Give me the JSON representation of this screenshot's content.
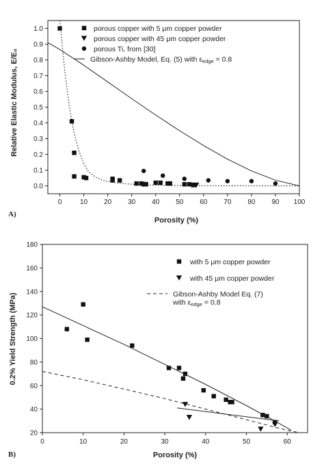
{
  "chart_data": [
    {
      "panel_label": "A)",
      "type": "scatter",
      "xlabel": "Porosity (%)",
      "ylabel": "Relative Elastic Modulus, E/E₀",
      "xlim": [
        -5,
        100
      ],
      "ylim": [
        -0.05,
        1.05
      ],
      "xticks": [
        0,
        10,
        20,
        30,
        40,
        50,
        60,
        70,
        80,
        90,
        100
      ],
      "yticks": [
        0.0,
        0.1,
        0.2,
        0.3,
        0.4,
        0.5,
        0.6,
        0.7,
        0.8,
        0.9,
        1.0
      ],
      "grid": false,
      "legend_position": "top-right",
      "series": [
        {
          "name": "porous copper with 5 μm copper powder",
          "marker": "square",
          "points": [
            [
              0,
              1.0
            ],
            [
              5,
              0.41
            ],
            [
              6,
              0.21
            ],
            [
              6,
              0.06
            ],
            [
              10,
              0.055
            ],
            [
              11,
              0.05
            ],
            [
              22,
              0.045
            ],
            [
              22,
              0.035
            ],
            [
              25,
              0.035
            ],
            [
              32,
              0.015
            ],
            [
              34,
              0.015
            ],
            [
              35,
              0.01
            ],
            [
              36,
              0.01
            ],
            [
              40,
              0.02
            ],
            [
              42,
              0.02
            ],
            [
              45,
              0.015
            ],
            [
              46,
              0.015
            ],
            [
              52,
              0.01
            ],
            [
              54,
              0.01
            ],
            [
              56,
              0.005
            ]
          ]
        },
        {
          "name": "porous copper with 45 μm copper powder",
          "marker": "triangle-down",
          "points": [
            [
              35,
              0.01
            ],
            [
              55,
              0.005
            ],
            [
              57,
              0.005
            ]
          ]
        },
        {
          "name": "porous Ti, from [30]",
          "marker": "circle",
          "points": [
            [
              35,
              0.095
            ],
            [
              43,
              0.065
            ],
            [
              52,
              0.045
            ],
            [
              62,
              0.035
            ],
            [
              70,
              0.03
            ],
            [
              80,
              0.03
            ],
            [
              90,
              0.015
            ]
          ]
        },
        {
          "name": "Gibson-Ashby Model, Eq. (5) with ε",
          "name_subscript": "edge",
          "name_suffix": " = 0.8",
          "style": "solid-line",
          "points": [
            [
              -5,
              0.91
            ],
            [
              0,
              0.866
            ],
            [
              10,
              0.766
            ],
            [
              20,
              0.66
            ],
            [
              30,
              0.554
            ],
            [
              40,
              0.45
            ],
            [
              50,
              0.35
            ],
            [
              60,
              0.256
            ],
            [
              70,
              0.169
            ],
            [
              80,
              0.095
            ],
            [
              90,
              0.036
            ],
            [
              100,
              0.0
            ]
          ]
        },
        {
          "style": "dotted-line",
          "points": [
            [
              0,
              1.05
            ],
            [
              2,
              0.74
            ],
            [
              4,
              0.5
            ],
            [
              6,
              0.33
            ],
            [
              8,
              0.22
            ],
            [
              10,
              0.14
            ],
            [
              12,
              0.09
            ],
            [
              15,
              0.055
            ],
            [
              18,
              0.035
            ],
            [
              22,
              0.022
            ],
            [
              28,
              0.012
            ],
            [
              35,
              0.006
            ],
            [
              45,
              0.003
            ],
            [
              60,
              0.001
            ],
            [
              90,
              0.0
            ],
            [
              100,
              0.0
            ]
          ]
        }
      ]
    },
    {
      "panel_label": "B)",
      "type": "scatter",
      "xlabel": "Porosity (%)",
      "ylabel": "0.2% Yield Strength (MPa)",
      "xlim": [
        0,
        65
      ],
      "ylim": [
        20,
        180
      ],
      "xticks": [
        0,
        10,
        20,
        30,
        40,
        50,
        60
      ],
      "yticks": [
        20,
        40,
        60,
        80,
        100,
        120,
        140,
        160,
        180
      ],
      "grid": false,
      "legend_position": "top-right",
      "series": [
        {
          "name": "with 5 μm copper powder",
          "marker": "square",
          "points": [
            [
              6,
              108
            ],
            [
              10,
              129
            ],
            [
              11,
              99
            ],
            [
              22,
              94
            ],
            [
              31,
              75
            ],
            [
              33.5,
              75
            ],
            [
              34.5,
              66
            ],
            [
              35,
              70
            ],
            [
              39.5,
              56
            ],
            [
              42,
              51
            ],
            [
              45,
              48
            ],
            [
              46,
              46
            ],
            [
              46.5,
              46
            ],
            [
              54,
              35
            ],
            [
              55,
              34
            ],
            [
              57,
              29
            ]
          ]
        },
        {
          "name": "with 45 μm copper powder",
          "marker": "triangle-down",
          "points": [
            [
              35,
              44
            ],
            [
              36,
              33
            ],
            [
              53.5,
              23
            ],
            [
              57,
              27
            ]
          ]
        },
        {
          "name": "Gibson-Ashby Model Eq. (7)",
          "name_line2": "with  ε",
          "name_subscript": "edge",
          "name_suffix": " = 0.8",
          "style": "dashed-line",
          "points": [
            [
              0,
              72
            ],
            [
              10,
              65
            ],
            [
              20,
              57
            ],
            [
              30,
              49
            ],
            [
              40,
              40
            ],
            [
              50,
              31
            ],
            [
              60,
              22
            ],
            [
              63,
              20
            ]
          ]
        },
        {
          "style": "solid-line",
          "points": [
            [
              0,
              127
            ],
            [
              10,
              111
            ],
            [
              20,
              95
            ],
            [
              30,
              78
            ],
            [
              40,
              61
            ],
            [
              50,
              43
            ],
            [
              58,
              28
            ],
            [
              61,
              22
            ]
          ]
        },
        {
          "style": "solid-line",
          "points": [
            [
              33,
              41
            ],
            [
              58,
              30
            ]
          ]
        }
      ]
    }
  ]
}
